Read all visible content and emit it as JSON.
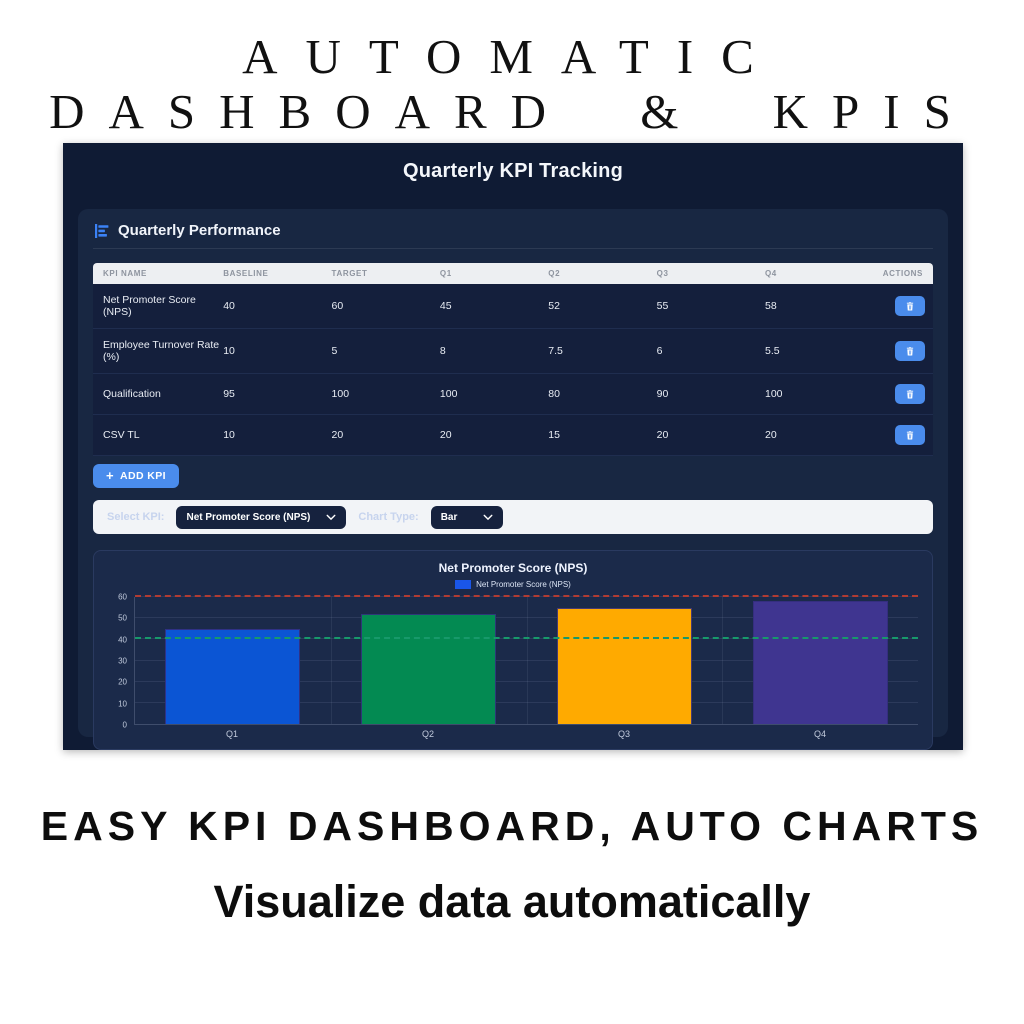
{
  "page": {
    "top_title_line1": "AUTOMATIC",
    "top_title_line2": "DASHBOARD & KPIS",
    "bottom_headline": "EASY KPI DASHBOARD, AUTO CHARTS",
    "bottom_subheadline": "Visualize data automatically"
  },
  "dashboard": {
    "title": "Quarterly KPI Tracking",
    "section_title": "Quarterly Performance",
    "table": {
      "headers": [
        "KPI Name",
        "Baseline",
        "Target",
        "Q1",
        "Q2",
        "Q3",
        "Q4",
        "Actions"
      ],
      "rows": [
        {
          "name": "Net Promoter Score (NPS)",
          "values": [
            "40",
            "60",
            "45",
            "52",
            "55",
            "58"
          ]
        },
        {
          "name": "Employee Turnover Rate (%)",
          "values": [
            "10",
            "5",
            "8",
            "7.5",
            "6",
            "5.5"
          ]
        },
        {
          "name": "Qualification",
          "values": [
            "95",
            "100",
            "100",
            "80",
            "90",
            "100"
          ]
        },
        {
          "name": "CSV TL",
          "values": [
            "10",
            "20",
            "20",
            "15",
            "20",
            "20"
          ]
        }
      ]
    },
    "add_kpi": {
      "icon": "+",
      "label": "ADD KPI"
    },
    "controls": {
      "select_kpi_label": "Select KPI:",
      "select_kpi_value": "Net Promoter Score (NPS)",
      "chart_type_label": "Chart Type:",
      "chart_type_value": "Bar"
    }
  },
  "chart_data": {
    "type": "bar",
    "title": "Net Promoter Score (NPS)",
    "legend": [
      "Net Promoter Score (NPS)"
    ],
    "legend_swatch": "#1a56e8",
    "categories": [
      "Q1",
      "Q2",
      "Q3",
      "Q4"
    ],
    "values": [
      45,
      52,
      55,
      58
    ],
    "bar_colors": [
      "#0b55d4",
      "#038a52",
      "#ffaa00",
      "#3f3590"
    ],
    "ylim": [
      0,
      60
    ],
    "yticks": [
      0,
      10,
      20,
      30,
      40,
      50,
      60
    ],
    "grid": true,
    "legend_position": "top",
    "reference_lines": [
      {
        "label": "target",
        "value": 60,
        "color": "#b23b32",
        "style": "dashed"
      },
      {
        "label": "baseline",
        "value": 40,
        "color": "#17996b",
        "style": "dashed"
      }
    ]
  },
  "colors": {
    "accent_blue": "#4a8cec",
    "panel_bg": "#0f1b34",
    "card_bg": "#182742",
    "table_header_bg": "#edeff2",
    "chart_card_bg": "#1b2a4a"
  }
}
